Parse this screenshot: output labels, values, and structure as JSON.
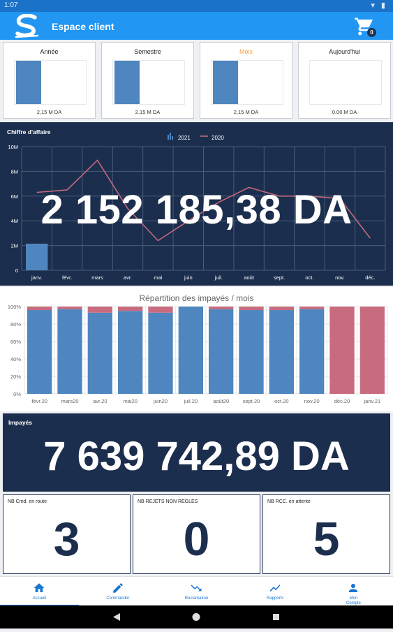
{
  "status_bar": {
    "time": "1:07"
  },
  "app_bar": {
    "title": "Espace client",
    "cart_count": "0"
  },
  "period_cards": [
    {
      "label": "Année",
      "value": "2,15 M DA",
      "bar_fill": 1.0,
      "active": false
    },
    {
      "label": "Semestre",
      "value": "2,15 M DA",
      "bar_fill": 1.0,
      "active": false
    },
    {
      "label": "Mois",
      "value": "2,15 M DA",
      "bar_fill": 1.0,
      "active": true
    },
    {
      "label": "Aujourd'hui",
      "value": "0,00 M DA",
      "bar_fill": 0.0,
      "active": false
    }
  ],
  "chiffre_affaire": {
    "title": "Chiffre d'affaire",
    "big_value": "2 152 185,38  DA"
  },
  "repartition": {
    "title": "Répartition des impayés / mois"
  },
  "impayes": {
    "title": "Impayés",
    "value": "7 639 742,89  DA"
  },
  "stats": [
    {
      "label": "NB Cmd. en route",
      "value": "3"
    },
    {
      "label": "NB REJETS NON REGLES",
      "value": "0"
    },
    {
      "label": "NB RCC. en attente",
      "value": "5"
    }
  ],
  "bottom_nav": [
    {
      "label": "Accueil",
      "icon": "home-icon",
      "active": true
    },
    {
      "label": "Commander",
      "icon": "pencil-icon",
      "active": false
    },
    {
      "label": "Reclamation",
      "icon": "trend-down-icon",
      "active": false
    },
    {
      "label": "Rapports",
      "icon": "chart-icon",
      "active": false
    },
    {
      "label": "Mon Compte",
      "icon": "person-icon",
      "active": false
    }
  ],
  "colors": {
    "primary": "#2196f3",
    "navy": "#1c2e4d",
    "bar_blue": "#4f86bf",
    "line_2020": "#c06a7e",
    "impaye_pink": "#c96b7e",
    "active_orange": "#f5a142"
  },
  "chart_data": [
    {
      "type": "bar",
      "title": "Chiffre d'affaire",
      "categories": [
        "janv.",
        "févr.",
        "mars",
        "avr.",
        "mai",
        "juin",
        "juil.",
        "août",
        "sept.",
        "oct.",
        "nov.",
        "déc."
      ],
      "series": [
        {
          "name": "2021",
          "type": "bar",
          "values": [
            2.15,
            0,
            0,
            0,
            0,
            0,
            0,
            0,
            0,
            0,
            0,
            0
          ]
        },
        {
          "name": "2020",
          "type": "line",
          "values": [
            6.3,
            6.5,
            8.9,
            5.0,
            2.4,
            4.0,
            5.5,
            6.7,
            6.0,
            6.0,
            5.8,
            2.6
          ]
        }
      ],
      "y_ticks": [
        "0",
        "2M",
        "4M",
        "6M",
        "8M",
        "10M"
      ],
      "ylim": [
        0,
        10
      ],
      "legend_position": "top-center",
      "grid": true
    },
    {
      "type": "bar",
      "title": "Répartition des impayés / mois",
      "categories": [
        "févr.20",
        "mars20",
        "avr.20",
        "mai20",
        "juin20",
        "juil.20",
        "août20",
        "sept.20",
        "oct.20",
        "nov.20",
        "déc.20",
        "janv.21"
      ],
      "series": [
        {
          "values": [
            96,
            97,
            93,
            95,
            93,
            100,
            97,
            96,
            96,
            97,
            0,
            0
          ]
        },
        {
          "values": [
            4,
            3,
            7,
            5,
            7,
            0,
            3,
            4,
            4,
            3,
            100,
            100
          ]
        }
      ],
      "y_ticks": [
        "0%",
        "20%",
        "40%",
        "60%",
        "80%",
        "100%"
      ],
      "ylim": [
        0,
        100
      ],
      "stacked": true,
      "grid": true
    }
  ]
}
